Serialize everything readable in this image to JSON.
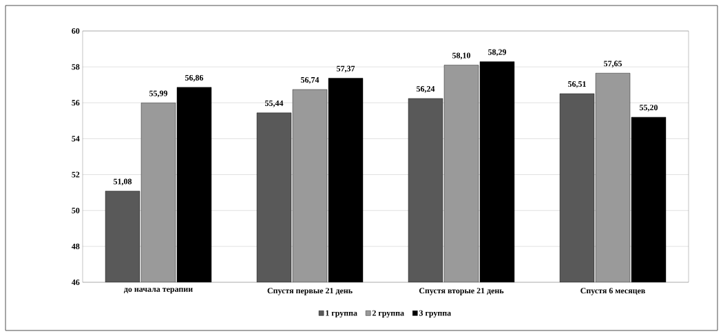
{
  "chart_data": {
    "type": "bar",
    "categories": [
      "до начала терапии",
      "Спустя первые 21 день",
      "Спустя вторые 21 день",
      "Спустя 6 месяцев"
    ],
    "series": [
      {
        "name": "1 группа",
        "color": "#595959",
        "values": [
          51.08,
          55.44,
          56.24,
          56.51
        ],
        "value_labels": [
          "51,08",
          "55,44",
          "56,24",
          "56,51"
        ]
      },
      {
        "name": "2 группа",
        "color": "#9a9a9a",
        "values": [
          55.99,
          56.74,
          58.1,
          57.65
        ],
        "value_labels": [
          "55,99",
          "56,74",
          "58,10",
          "57,65"
        ]
      },
      {
        "name": "3 группа",
        "color": "#000000",
        "values": [
          56.86,
          57.37,
          58.29,
          55.2
        ],
        "value_labels": [
          "56,86",
          "57,37",
          "58,29",
          "55,20"
        ]
      }
    ],
    "ylim": [
      46,
      60
    ],
    "yticks": [
      46,
      48,
      50,
      52,
      54,
      56,
      58,
      60
    ],
    "grid": "y",
    "legend": "bottom"
  }
}
